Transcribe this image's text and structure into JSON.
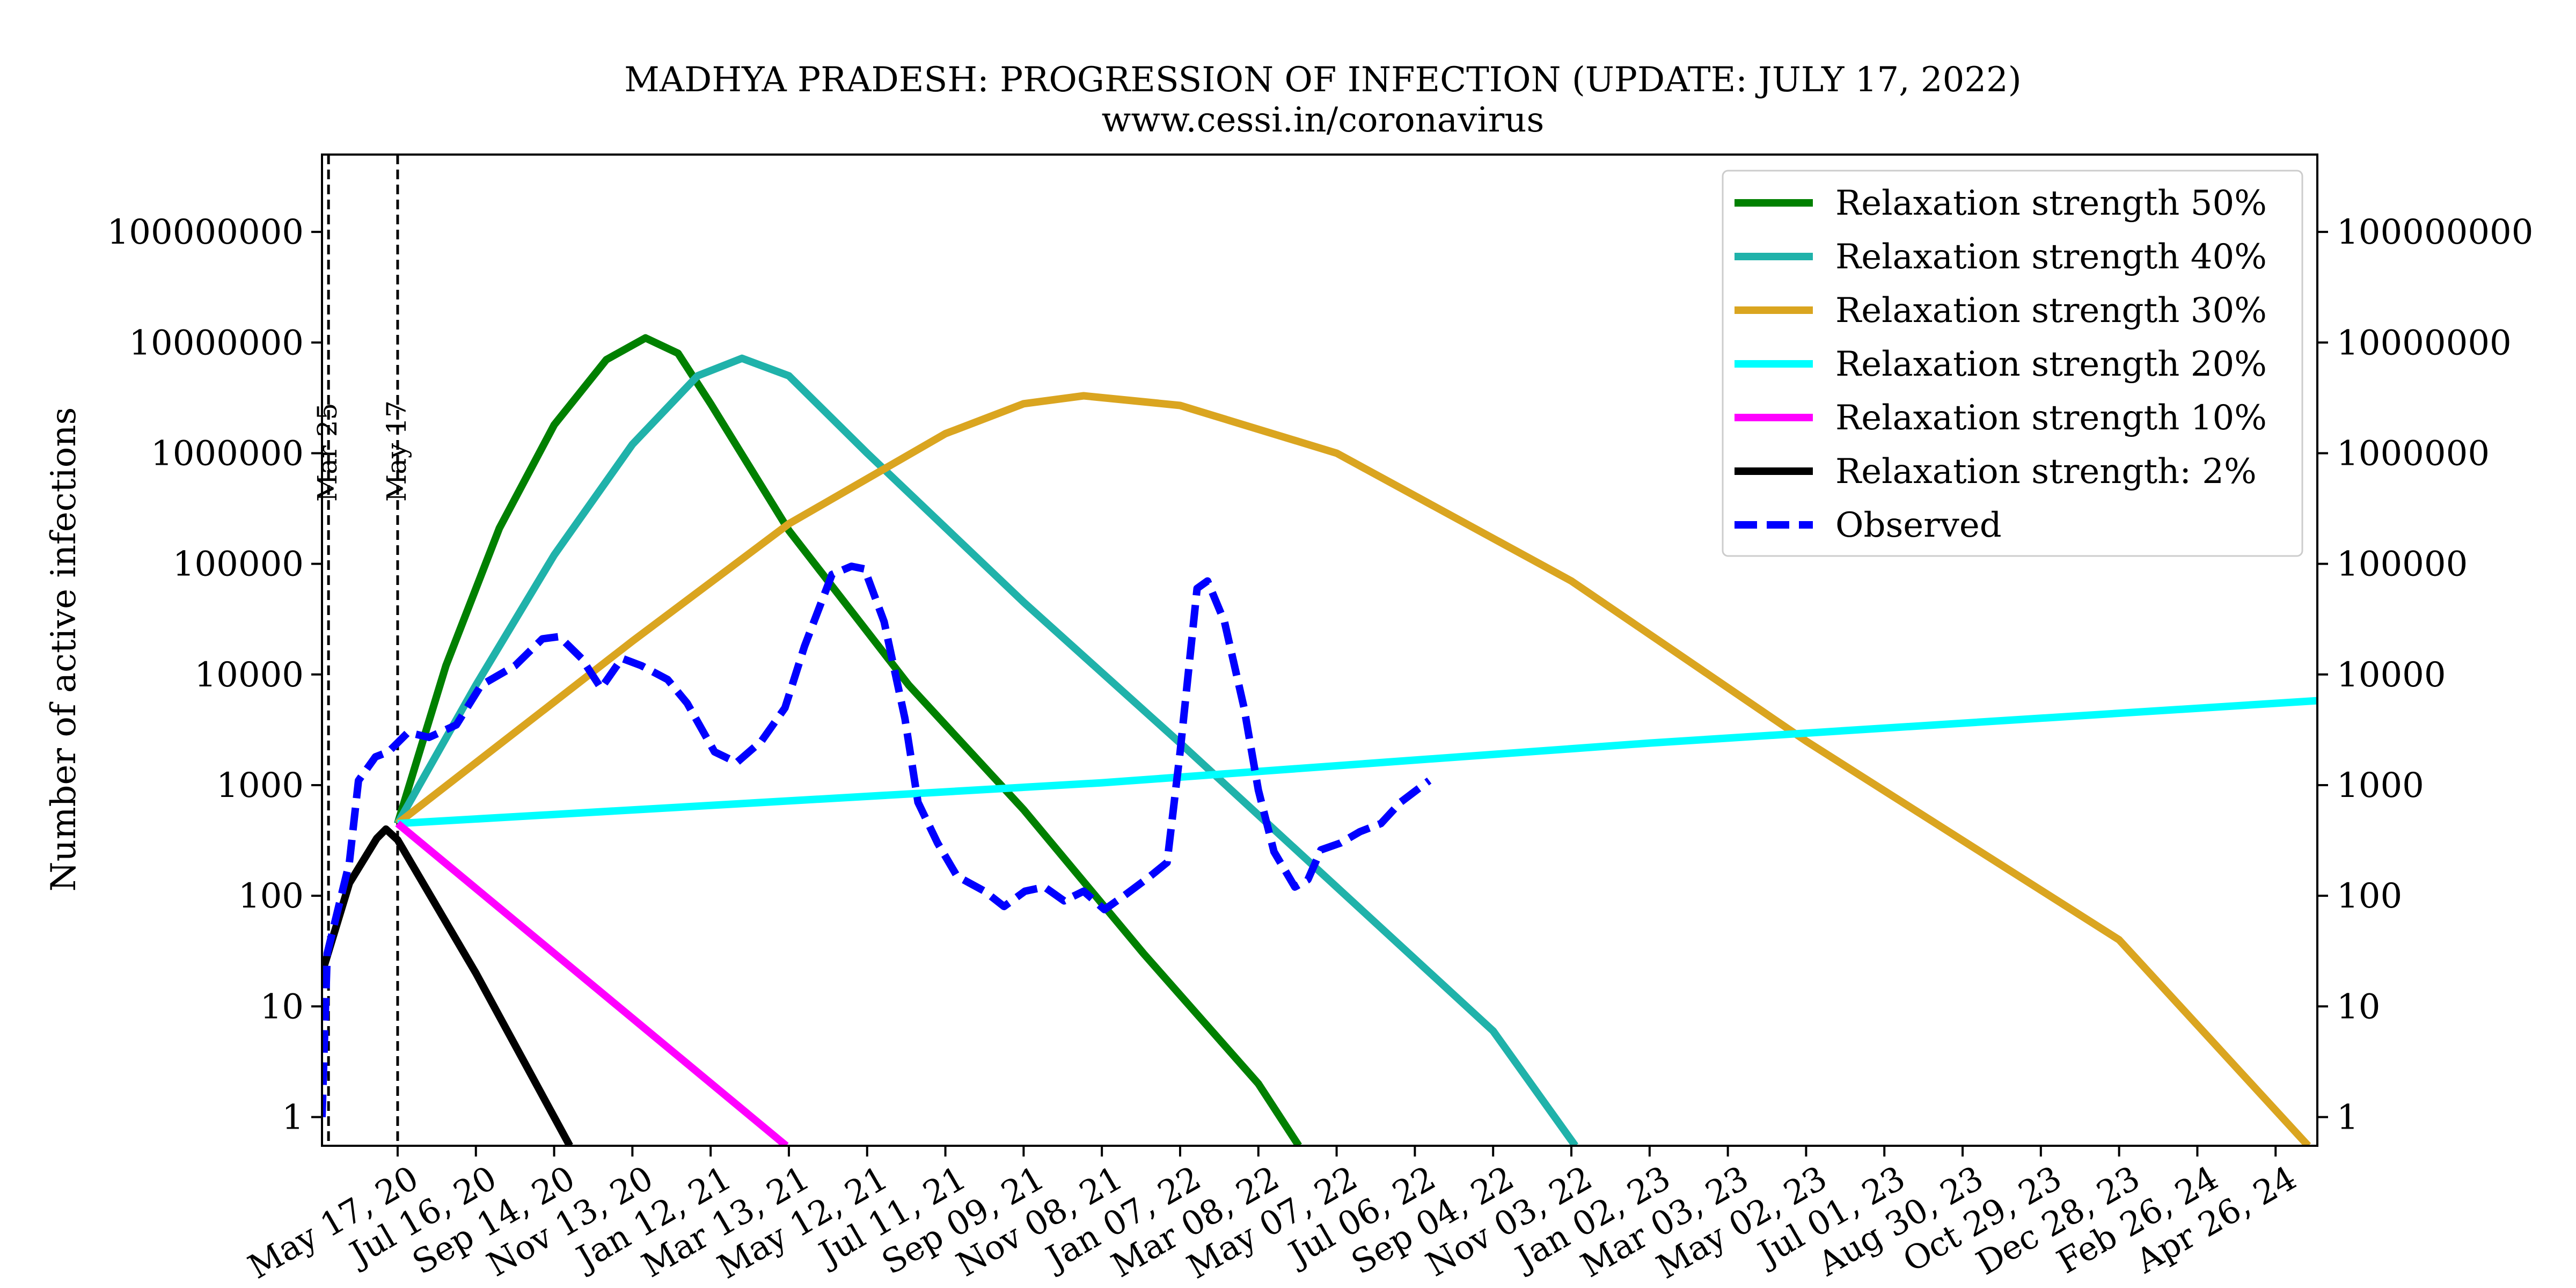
{
  "chart_data": {
    "type": "line",
    "title": "MADHYA PRADESH: PROGRESSION OF INFECTION (UPDATE: JULY 17, 2022)",
    "subtitle": "www.cessi.in/coronavirus",
    "ylabel": "Number of active infections",
    "xlabel": "",
    "y_scale": "log",
    "ylim": [
      0.55,
      500000000
    ],
    "xlim": [
      "2020-03-20",
      "2024-05-28"
    ],
    "grid": false,
    "legend_position": "top-right",
    "secondary_y_axis": true,
    "x_ticks": [
      {
        "date": "2020-05-17",
        "label": "May 17, 20"
      },
      {
        "date": "2020-07-16",
        "label": "Jul 16, 20"
      },
      {
        "date": "2020-09-14",
        "label": "Sep 14, 20"
      },
      {
        "date": "2020-11-13",
        "label": "Nov 13, 20"
      },
      {
        "date": "2021-01-12",
        "label": "Jan 12, 21"
      },
      {
        "date": "2021-03-13",
        "label": "Mar 13, 21"
      },
      {
        "date": "2021-05-12",
        "label": "May 12, 21"
      },
      {
        "date": "2021-07-11",
        "label": "Jul 11, 21"
      },
      {
        "date": "2021-09-09",
        "label": "Sep 09, 21"
      },
      {
        "date": "2021-11-08",
        "label": "Nov 08, 21"
      },
      {
        "date": "2022-01-07",
        "label": "Jan 07, 22"
      },
      {
        "date": "2022-03-08",
        "label": "Mar 08, 22"
      },
      {
        "date": "2022-05-07",
        "label": "May 07, 22"
      },
      {
        "date": "2022-07-06",
        "label": "Jul 06, 22"
      },
      {
        "date": "2022-09-04",
        "label": "Sep 04, 22"
      },
      {
        "date": "2022-11-03",
        "label": "Nov 03, 22"
      },
      {
        "date": "2023-01-02",
        "label": "Jan 02, 23"
      },
      {
        "date": "2023-03-03",
        "label": "Mar 03, 23"
      },
      {
        "date": "2023-05-02",
        "label": "May 02, 23"
      },
      {
        "date": "2023-07-01",
        "label": "Jul 01, 23"
      },
      {
        "date": "2023-08-30",
        "label": "Aug 30, 23"
      },
      {
        "date": "2023-10-29",
        "label": "Oct 29, 23"
      },
      {
        "date": "2023-12-28",
        "label": "Dec 28, 23"
      },
      {
        "date": "2024-02-26",
        "label": "Feb 26, 24"
      },
      {
        "date": "2024-04-26",
        "label": "Apr 26, 24"
      }
    ],
    "y_ticks": [
      {
        "value": 1,
        "label": "1"
      },
      {
        "value": 10,
        "label": "10"
      },
      {
        "value": 100,
        "label": "100"
      },
      {
        "value": 1000,
        "label": "1000"
      },
      {
        "value": 10000,
        "label": "10000"
      },
      {
        "value": 100000,
        "label": "100000"
      },
      {
        "value": 1000000,
        "label": "1000000"
      },
      {
        "value": 10000000,
        "label": "10000000"
      },
      {
        "value": 100000000,
        "label": "100000000"
      }
    ],
    "vlines": [
      {
        "date": "2020-03-25",
        "label": "Mar 25"
      },
      {
        "date": "2020-05-17",
        "label": "May 17"
      }
    ],
    "series": [
      {
        "name": "Relaxation strength 50%",
        "color": "#008000",
        "style": "solid",
        "points": [
          {
            "x": "2020-05-17",
            "y": 450
          },
          {
            "x": "2020-06-23",
            "y": 12000
          },
          {
            "x": "2020-08-03",
            "y": 210000
          },
          {
            "x": "2020-09-14",
            "y": 1800000
          },
          {
            "x": "2020-10-24",
            "y": 7000000
          },
          {
            "x": "2020-11-23",
            "y": 11000000
          },
          {
            "x": "2020-12-18",
            "y": 8000000
          },
          {
            "x": "2021-01-12",
            "y": 2800000
          },
          {
            "x": "2021-03-13",
            "y": 200000
          },
          {
            "x": "2021-06-13",
            "y": 8000
          },
          {
            "x": "2021-09-09",
            "y": 600
          },
          {
            "x": "2021-12-10",
            "y": 30
          },
          {
            "x": "2022-03-08",
            "y": 2
          },
          {
            "x": "2022-04-08",
            "y": 0.55
          }
        ]
      },
      {
        "name": "Relaxation strength 40%",
        "color": "#20b2aa",
        "style": "solid",
        "points": [
          {
            "x": "2020-05-17",
            "y": 450
          },
          {
            "x": "2020-07-16",
            "y": 8000
          },
          {
            "x": "2020-09-14",
            "y": 120000
          },
          {
            "x": "2020-11-13",
            "y": 1200000
          },
          {
            "x": "2021-01-02",
            "y": 5000000
          },
          {
            "x": "2021-02-05",
            "y": 7200000
          },
          {
            "x": "2021-03-13",
            "y": 5000000
          },
          {
            "x": "2021-05-12",
            "y": 1000000
          },
          {
            "x": "2021-09-09",
            "y": 45000
          },
          {
            "x": "2022-01-07",
            "y": 2400
          },
          {
            "x": "2022-05-07",
            "y": 120
          },
          {
            "x": "2022-09-04",
            "y": 6
          },
          {
            "x": "2022-11-06",
            "y": 0.55
          }
        ]
      },
      {
        "name": "Relaxation strength 30%",
        "color": "#daa520",
        "style": "solid",
        "points": [
          {
            "x": "2020-05-17",
            "y": 450
          },
          {
            "x": "2020-11-13",
            "y": 20000
          },
          {
            "x": "2021-03-13",
            "y": 230000
          },
          {
            "x": "2021-07-11",
            "y": 1500000
          },
          {
            "x": "2021-09-09",
            "y": 2800000
          },
          {
            "x": "2021-10-25",
            "y": 3300000
          },
          {
            "x": "2022-01-07",
            "y": 2700000
          },
          {
            "x": "2022-05-07",
            "y": 1000000
          },
          {
            "x": "2022-11-03",
            "y": 70000
          },
          {
            "x": "2023-05-02",
            "y": 2500
          },
          {
            "x": "2023-12-28",
            "y": 40
          },
          {
            "x": "2024-05-21",
            "y": 0.55
          }
        ]
      },
      {
        "name": "Relaxation strength 20%",
        "color": "#00ffff",
        "style": "solid",
        "points": [
          {
            "x": "2020-05-17",
            "y": 450
          },
          {
            "x": "2021-11-08",
            "y": 1050
          },
          {
            "x": "2023-01-02",
            "y": 2400
          },
          {
            "x": "2024-05-28",
            "y": 5800
          }
        ]
      },
      {
        "name": "Relaxation strength 10%",
        "color": "#ff00ff",
        "style": "solid",
        "points": [
          {
            "x": "2020-05-17",
            "y": 450
          },
          {
            "x": "2021-03-11",
            "y": 0.55
          }
        ]
      },
      {
        "name": "Relaxation strength: 2%",
        "color": "#000000",
        "style": "solid",
        "points": [
          {
            "x": "2020-03-20",
            "y": 20
          },
          {
            "x": "2020-04-10",
            "y": 130
          },
          {
            "x": "2020-05-01",
            "y": 330
          },
          {
            "x": "2020-05-08",
            "y": 400
          },
          {
            "x": "2020-05-17",
            "y": 320
          },
          {
            "x": "2020-07-16",
            "y": 20
          },
          {
            "x": "2020-09-14",
            "y": 1
          },
          {
            "x": "2020-09-26",
            "y": 0.55
          }
        ]
      },
      {
        "name": "Observed",
        "color": "#0000ff",
        "style": "dashed",
        "points": [
          {
            "x": "2020-03-20",
            "y": 1
          },
          {
            "x": "2020-03-24",
            "y": 30
          },
          {
            "x": "2020-04-10",
            "y": 200
          },
          {
            "x": "2020-04-17",
            "y": 1100
          },
          {
            "x": "2020-04-30",
            "y": 1800
          },
          {
            "x": "2020-05-10",
            "y": 2000
          },
          {
            "x": "2020-05-25",
            "y": 3000
          },
          {
            "x": "2020-06-10",
            "y": 2700
          },
          {
            "x": "2020-07-01",
            "y": 3500
          },
          {
            "x": "2020-07-20",
            "y": 8000
          },
          {
            "x": "2020-08-15",
            "y": 12000
          },
          {
            "x": "2020-09-05",
            "y": 21000
          },
          {
            "x": "2020-09-18",
            "y": 22000
          },
          {
            "x": "2020-10-05",
            "y": 14000
          },
          {
            "x": "2020-10-20",
            "y": 7500
          },
          {
            "x": "2020-11-05",
            "y": 14000
          },
          {
            "x": "2020-11-20",
            "y": 12000
          },
          {
            "x": "2020-12-10",
            "y": 9000
          },
          {
            "x": "2020-12-25",
            "y": 5500
          },
          {
            "x": "2021-01-15",
            "y": 2000
          },
          {
            "x": "2021-02-01",
            "y": 1600
          },
          {
            "x": "2021-02-20",
            "y": 2500
          },
          {
            "x": "2021-03-10",
            "y": 5000
          },
          {
            "x": "2021-03-25",
            "y": 18000
          },
          {
            "x": "2021-04-15",
            "y": 80000
          },
          {
            "x": "2021-04-30",
            "y": 95000
          },
          {
            "x": "2021-05-10",
            "y": 90000
          },
          {
            "x": "2021-05-25",
            "y": 30000
          },
          {
            "x": "2021-06-10",
            "y": 4000
          },
          {
            "x": "2021-06-20",
            "y": 700
          },
          {
            "x": "2021-07-05",
            "y": 300
          },
          {
            "x": "2021-07-20",
            "y": 150
          },
          {
            "x": "2021-08-10",
            "y": 110
          },
          {
            "x": "2021-08-25",
            "y": 80
          },
          {
            "x": "2021-09-10",
            "y": 110
          },
          {
            "x": "2021-09-25",
            "y": 120
          },
          {
            "x": "2021-10-10",
            "y": 90
          },
          {
            "x": "2021-10-25",
            "y": 110
          },
          {
            "x": "2021-11-10",
            "y": 75
          },
          {
            "x": "2021-11-25",
            "y": 100
          },
          {
            "x": "2021-12-15",
            "y": 150
          },
          {
            "x": "2021-12-28",
            "y": 200
          },
          {
            "x": "2022-01-07",
            "y": 2000
          },
          {
            "x": "2022-01-20",
            "y": 60000
          },
          {
            "x": "2022-01-28",
            "y": 70000
          },
          {
            "x": "2022-02-10",
            "y": 30000
          },
          {
            "x": "2022-02-25",
            "y": 5000
          },
          {
            "x": "2022-03-08",
            "y": 900
          },
          {
            "x": "2022-03-20",
            "y": 250
          },
          {
            "x": "2022-04-05",
            "y": 120
          },
          {
            "x": "2022-04-15",
            "y": 140
          },
          {
            "x": "2022-04-25",
            "y": 260
          },
          {
            "x": "2022-05-10",
            "y": 300
          },
          {
            "x": "2022-05-25",
            "y": 380
          },
          {
            "x": "2022-06-10",
            "y": 450
          },
          {
            "x": "2022-06-25",
            "y": 700
          },
          {
            "x": "2022-07-17",
            "y": 1100
          }
        ]
      }
    ]
  }
}
